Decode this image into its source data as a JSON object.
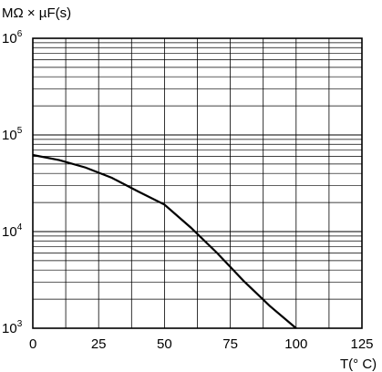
{
  "chart_data": {
    "type": "line",
    "ylabel": "MΩ × µF(s)",
    "xlabel": "T(° C)",
    "xlim": [
      0,
      125
    ],
    "ylim": [
      1000,
      1000000
    ],
    "yscale": "log",
    "grid": true,
    "x_ticks": [
      "0",
      "25",
      "50",
      "75",
      "100",
      "125"
    ],
    "y_ticks": [
      {
        "base": "10",
        "exp": "6",
        "value": 1000000
      },
      {
        "base": "10",
        "exp": "5",
        "value": 100000
      },
      {
        "base": "10",
        "exp": "4",
        "value": 10000
      },
      {
        "base": "10",
        "exp": "3",
        "value": 1000
      }
    ],
    "series": [
      {
        "x": [
          0,
          10,
          20,
          30,
          40,
          50,
          60,
          70,
          80,
          90,
          100
        ],
        "y": [
          62000,
          55000,
          46000,
          36000,
          26000,
          19000,
          11000,
          6000,
          3100,
          1700,
          1000
        ]
      }
    ]
  }
}
